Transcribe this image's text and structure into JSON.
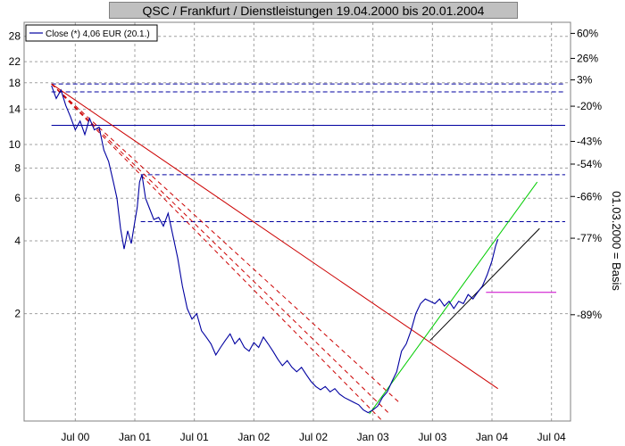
{
  "chart_data": {
    "type": "line",
    "title": "QSC / Frankfurt / Dienstleistungen 19.04.2000 bis 20.01.2004",
    "ylabel_right": "01.03.2000 = Basis",
    "y_scale": "log",
    "ylim": [
      0.72,
      32
    ],
    "x_ticks": [
      {
        "label": "Jul 00",
        "t": 2000.5
      },
      {
        "label": "Jan 01",
        "t": 2001.0
      },
      {
        "label": "Jul 01",
        "t": 2001.5
      },
      {
        "label": "Jan 02",
        "t": 2002.0
      },
      {
        "label": "Jul 02",
        "t": 2002.5
      },
      {
        "label": "Jan 03",
        "t": 2003.0
      },
      {
        "label": "Jul 03",
        "t": 2003.5
      },
      {
        "label": "Jan 04",
        "t": 2004.0
      },
      {
        "label": "Jul 04",
        "t": 2004.5
      }
    ],
    "y_ticks_left": [
      2,
      4,
      6,
      8,
      10,
      14,
      18,
      22,
      28
    ],
    "y_ticks_right": [
      {
        "label": "60%",
        "v": 28.8
      },
      {
        "label": "26%",
        "v": 22.7
      },
      {
        "label": "3%",
        "v": 18.5
      },
      {
        "label": "-20%",
        "v": 14.4
      },
      {
        "label": "-43%",
        "v": 10.3
      },
      {
        "label": "-54%",
        "v": 8.3
      },
      {
        "label": "-66%",
        "v": 6.1
      },
      {
        "label": "-77%",
        "v": 4.1
      },
      {
        "label": "-89%",
        "v": 1.98
      }
    ],
    "legend": {
      "label": "Close (*) 4,06 EUR (20.1.)",
      "placement": "top-left"
    },
    "series": [
      {
        "name": "Close (*) 4,06 EUR (20.1.)",
        "color": "#0000a0",
        "points": [
          [
            2000.3,
            17.5
          ],
          [
            2000.34,
            15.5
          ],
          [
            2000.38,
            16.8
          ],
          [
            2000.42,
            14.5
          ],
          [
            2000.46,
            13.0
          ],
          [
            2000.5,
            11.5
          ],
          [
            2000.54,
            12.5
          ],
          [
            2000.58,
            11.0
          ],
          [
            2000.62,
            12.8
          ],
          [
            2000.66,
            11.5
          ],
          [
            2000.7,
            11.8
          ],
          [
            2000.74,
            9.5
          ],
          [
            2000.78,
            8.5
          ],
          [
            2000.82,
            7.0
          ],
          [
            2000.85,
            6.0
          ],
          [
            2000.88,
            4.5
          ],
          [
            2000.91,
            3.7
          ],
          [
            2000.94,
            4.4
          ],
          [
            2000.97,
            3.9
          ],
          [
            2001.0,
            4.8
          ],
          [
            2001.02,
            5.5
          ],
          [
            2001.04,
            7.0
          ],
          [
            2001.06,
            7.5
          ],
          [
            2001.09,
            6.0
          ],
          [
            2001.12,
            5.5
          ],
          [
            2001.16,
            4.9
          ],
          [
            2001.2,
            5.0
          ],
          [
            2001.24,
            4.6
          ],
          [
            2001.28,
            5.2
          ],
          [
            2001.32,
            4.2
          ],
          [
            2001.36,
            3.4
          ],
          [
            2001.4,
            2.6
          ],
          [
            2001.44,
            2.1
          ],
          [
            2001.48,
            1.9
          ],
          [
            2001.52,
            2.0
          ],
          [
            2001.56,
            1.7
          ],
          [
            2001.6,
            1.6
          ],
          [
            2001.64,
            1.5
          ],
          [
            2001.68,
            1.35
          ],
          [
            2001.72,
            1.45
          ],
          [
            2001.76,
            1.55
          ],
          [
            2001.8,
            1.65
          ],
          [
            2001.84,
            1.5
          ],
          [
            2001.88,
            1.58
          ],
          [
            2001.92,
            1.45
          ],
          [
            2001.96,
            1.4
          ],
          [
            2002.0,
            1.52
          ],
          [
            2002.04,
            1.45
          ],
          [
            2002.08,
            1.6
          ],
          [
            2002.12,
            1.5
          ],
          [
            2002.16,
            1.4
          ],
          [
            2002.2,
            1.3
          ],
          [
            2002.24,
            1.22
          ],
          [
            2002.28,
            1.28
          ],
          [
            2002.32,
            1.2
          ],
          [
            2002.36,
            1.15
          ],
          [
            2002.4,
            1.2
          ],
          [
            2002.44,
            1.12
          ],
          [
            2002.48,
            1.05
          ],
          [
            2002.52,
            1.0
          ],
          [
            2002.56,
            0.97
          ],
          [
            2002.6,
            1.0
          ],
          [
            2002.64,
            0.95
          ],
          [
            2002.68,
            0.98
          ],
          [
            2002.72,
            0.93
          ],
          [
            2002.76,
            0.9
          ],
          [
            2002.8,
            0.88
          ],
          [
            2002.84,
            0.86
          ],
          [
            2002.88,
            0.84
          ],
          [
            2002.92,
            0.8
          ],
          [
            2002.96,
            0.78
          ],
          [
            2003.0,
            0.8
          ],
          [
            2003.04,
            0.83
          ],
          [
            2003.08,
            0.9
          ],
          [
            2003.12,
            0.95
          ],
          [
            2003.16,
            1.05
          ],
          [
            2003.2,
            1.15
          ],
          [
            2003.24,
            1.4
          ],
          [
            2003.28,
            1.5
          ],
          [
            2003.32,
            1.7
          ],
          [
            2003.36,
            2.0
          ],
          [
            2003.4,
            2.2
          ],
          [
            2003.44,
            2.3
          ],
          [
            2003.48,
            2.25
          ],
          [
            2003.52,
            2.2
          ],
          [
            2003.56,
            2.3
          ],
          [
            2003.6,
            2.15
          ],
          [
            2003.64,
            2.25
          ],
          [
            2003.68,
            2.1
          ],
          [
            2003.72,
            2.25
          ],
          [
            2003.76,
            2.2
          ],
          [
            2003.8,
            2.4
          ],
          [
            2003.84,
            2.3
          ],
          [
            2003.88,
            2.45
          ],
          [
            2003.92,
            2.6
          ],
          [
            2003.96,
            2.9
          ],
          [
            2004.0,
            3.3
          ],
          [
            2004.03,
            3.8
          ],
          [
            2004.05,
            4.06
          ]
        ]
      }
    ],
    "trendlines": [
      {
        "color": "#cc0000",
        "dash": false,
        "from": [
          2000.3,
          17.8
        ],
        "to": [
          2004.05,
          0.98
        ]
      },
      {
        "color": "#cc0000",
        "dash": true,
        "from": [
          2000.3,
          17.8
        ],
        "to": [
          2003.22,
          0.86
        ]
      },
      {
        "color": "#cc0000",
        "dash": true,
        "from": [
          2000.3,
          17.8
        ],
        "to": [
          2003.14,
          0.77
        ]
      },
      {
        "color": "#cc0000",
        "dash": true,
        "from": [
          2000.3,
          17.8
        ],
        "to": [
          2003.08,
          0.72
        ]
      },
      {
        "color": "#00cc00",
        "dash": false,
        "from": [
          2002.97,
          0.77
        ],
        "to": [
          2004.38,
          7.0
        ]
      },
      {
        "color": "#000000",
        "dash": false,
        "from": [
          2003.48,
          1.55
        ],
        "to": [
          2004.4,
          4.5
        ]
      },
      {
        "color": "#cc00cc",
        "dash": false,
        "from": [
          2003.95,
          2.45
        ],
        "to": [
          2004.54,
          2.45
        ]
      }
    ],
    "horizontal_levels": [
      {
        "v": 17.8,
        "color": "#0000a0",
        "dash": true,
        "t0": 2000.3
      },
      {
        "v": 16.5,
        "color": "#0000a0",
        "dash": true,
        "t0": 2000.3
      },
      {
        "v": 12.0,
        "color": "#0000a0",
        "dash": false,
        "t0": 2000.3
      },
      {
        "v": 7.5,
        "color": "#0000a0",
        "dash": true,
        "t0": 2001.05
      },
      {
        "v": 4.8,
        "color": "#0000a0",
        "dash": true,
        "t0": 2001.05
      }
    ],
    "grid": true
  }
}
